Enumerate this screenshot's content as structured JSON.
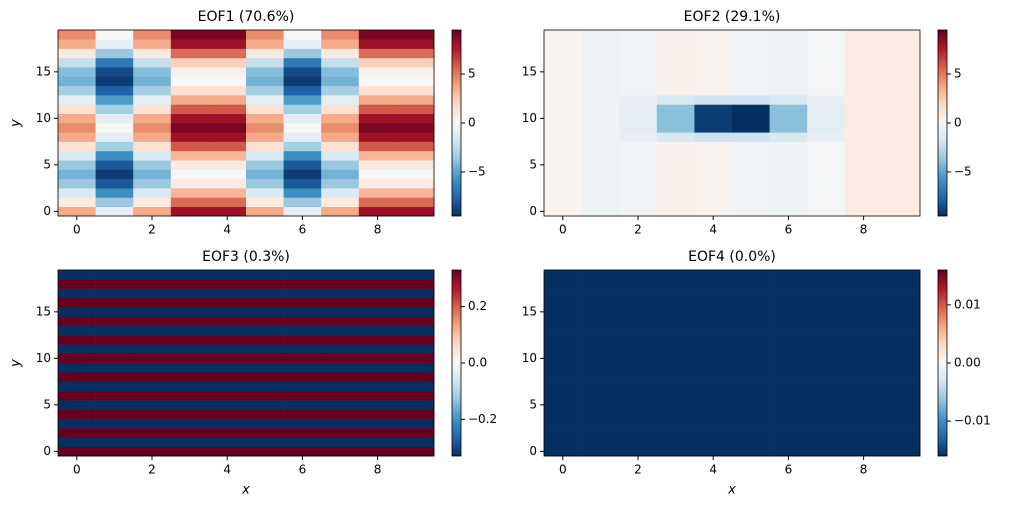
{
  "chart_data": [
    {
      "type": "heatmap",
      "title": "EOF1 (70.6%)",
      "ylabel": "y",
      "colormap": "RdBu_r",
      "xlim": [
        -0.5,
        9.5
      ],
      "xticks": [
        0,
        2,
        4,
        6,
        8
      ],
      "ylim": [
        -0.5,
        19.5
      ],
      "yticks": [
        0,
        5,
        10,
        15
      ],
      "clim": [
        -9.5,
        9.5
      ],
      "cticks": [
        {
          "value": -5,
          "label": "−5"
        },
        0,
        5
      ],
      "values": [
        [
          3.6,
          -0.9,
          3.6,
          8.1,
          8.1,
          3.6,
          -0.9,
          3.6,
          8.1,
          8.1
        ],
        [
          0.9,
          -3.6,
          0.9,
          5.4,
          5.4,
          0.9,
          -3.6,
          0.9,
          5.4,
          5.4
        ],
        [
          -1.4,
          -5.9,
          -1.4,
          3.2,
          3.2,
          -1.4,
          -5.9,
          -1.4,
          3.2,
          3.2
        ],
        [
          -3.6,
          -8.1,
          -3.6,
          0.9,
          0.9,
          -3.6,
          -8.1,
          -3.6,
          0.9,
          0.9
        ],
        [
          -4.5,
          -9,
          -4.5,
          0,
          0,
          -4.5,
          -9,
          -4.5,
          0,
          0
        ],
        [
          -3.6,
          -8.1,
          -3.6,
          0.9,
          0.9,
          -3.6,
          -8.1,
          -3.6,
          0.9,
          0.9
        ],
        [
          -1.4,
          -5.9,
          -1.4,
          3.2,
          3.2,
          -1.4,
          -5.9,
          -1.4,
          3.2,
          3.2
        ],
        [
          1.4,
          -3.2,
          1.4,
          5.9,
          5.9,
          1.4,
          -3.2,
          1.4,
          5.9,
          5.9
        ],
        [
          3.6,
          -0.9,
          3.6,
          8.1,
          8.1,
          3.6,
          -0.9,
          3.6,
          8.1,
          8.1
        ],
        [
          4.5,
          0,
          4.5,
          9,
          9,
          4.5,
          0,
          4.5,
          9,
          9
        ],
        [
          3.6,
          -0.9,
          3.6,
          8.1,
          8.1,
          3.6,
          -0.9,
          3.6,
          8.1,
          8.1
        ],
        [
          1.4,
          -3.2,
          1.4,
          5.9,
          5.9,
          1.4,
          -3.2,
          1.4,
          5.9,
          5.9
        ],
        [
          -0.9,
          -5.4,
          -0.9,
          3.6,
          3.6,
          -0.9,
          -5.4,
          -0.9,
          3.6,
          3.6
        ],
        [
          -3.2,
          -7.7,
          -3.2,
          1.4,
          1.4,
          -3.2,
          -7.7,
          -3.2,
          1.4,
          1.4
        ],
        [
          -4.5,
          -9,
          -4.5,
          0,
          0,
          -4.5,
          -9,
          -4.5,
          0,
          0
        ],
        [
          -4.1,
          -8.6,
          -4.1,
          0.5,
          0.5,
          -4.1,
          -8.6,
          -4.1,
          0.5,
          0.5
        ],
        [
          -2.3,
          -6.8,
          -2.3,
          2.3,
          2.3,
          -2.3,
          -6.8,
          -2.3,
          2.3,
          2.3
        ],
        [
          0.9,
          -3.6,
          0.9,
          5.4,
          5.4,
          0.9,
          -3.6,
          0.9,
          5.4,
          5.4
        ],
        [
          3.6,
          -0.9,
          3.6,
          8.1,
          8.1,
          3.6,
          -0.9,
          3.6,
          8.1,
          8.1
        ],
        [
          4.5,
          0,
          4.5,
          9,
          9,
          4.5,
          0,
          4.5,
          9,
          9
        ]
      ]
    },
    {
      "type": "heatmap",
      "title": "EOF2 (29.1%)",
      "colormap": "RdBu_r",
      "xlim": [
        -0.5,
        9.5
      ],
      "xticks": [
        0,
        2,
        4,
        6,
        8
      ],
      "ylim": [
        -0.5,
        19.5
      ],
      "yticks": [
        0,
        5,
        10,
        15
      ],
      "clim": [
        -9.5,
        9.5
      ],
      "cticks": [
        {
          "value": -5,
          "label": "−5"
        },
        0,
        5
      ],
      "values": [
        [
          0.3,
          -0.5,
          -0.3,
          0.5,
          0.3,
          -0.3,
          -0.5,
          -0.2,
          0.8,
          0.8
        ],
        [
          0.3,
          -0.5,
          -0.3,
          0.5,
          0.3,
          -0.3,
          -0.5,
          -0.2,
          0.8,
          0.8
        ],
        [
          0.3,
          -0.5,
          -0.3,
          0.5,
          0.3,
          -0.3,
          -0.5,
          -0.2,
          0.8,
          0.8
        ],
        [
          0.3,
          -0.5,
          -0.3,
          0.5,
          0.3,
          -0.3,
          -0.5,
          -0.2,
          0.8,
          0.8
        ],
        [
          0.3,
          -0.5,
          -0.3,
          0.5,
          0.3,
          -0.3,
          -0.5,
          -0.2,
          0.8,
          0.8
        ],
        [
          0.3,
          -0.5,
          -0.3,
          0.5,
          0.3,
          -0.3,
          -0.5,
          -0.2,
          0.8,
          0.8
        ],
        [
          0.3,
          -0.5,
          -0.3,
          0.5,
          0.3,
          -0.3,
          -0.5,
          -0.2,
          0.8,
          0.8
        ],
        [
          0.3,
          -0.5,
          -0.3,
          0.5,
          0.3,
          -0.3,
          -0.5,
          -0.2,
          0.8,
          0.8
        ],
        [
          0.3,
          -0.5,
          -0.8,
          -1.5,
          -2,
          -2,
          -1.5,
          -0.8,
          0.8,
          0.8
        ],
        [
          0.3,
          -0.5,
          -1,
          -4,
          -9,
          -9.5,
          -4,
          -1,
          0.8,
          0.8
        ],
        [
          0.3,
          -0.5,
          -1,
          -4,
          -9,
          -9.5,
          -4,
          -1,
          0.8,
          0.8
        ],
        [
          0.3,
          -0.5,
          -1,
          -4,
          -9,
          -9.5,
          -4,
          -1,
          0.8,
          0.8
        ],
        [
          0.3,
          -0.5,
          -0.8,
          -1.5,
          -2,
          -2,
          -1.5,
          -0.8,
          0.8,
          0.8
        ],
        [
          0.3,
          -0.5,
          -0.3,
          0.5,
          0.3,
          -0.3,
          -0.5,
          -0.2,
          0.8,
          0.8
        ],
        [
          0.3,
          -0.5,
          -0.3,
          0.5,
          0.3,
          -0.3,
          -0.5,
          -0.2,
          0.8,
          0.8
        ],
        [
          0.3,
          -0.5,
          -0.3,
          0.5,
          0.3,
          -0.3,
          -0.5,
          -0.2,
          0.8,
          0.8
        ],
        [
          0.3,
          -0.5,
          -0.3,
          0.5,
          0.3,
          -0.3,
          -0.5,
          -0.2,
          0.8,
          0.8
        ],
        [
          0.3,
          -0.5,
          -0.3,
          0.5,
          0.3,
          -0.3,
          -0.5,
          -0.2,
          0.8,
          0.8
        ],
        [
          0.3,
          -0.5,
          -0.3,
          0.5,
          0.3,
          -0.3,
          -0.5,
          -0.2,
          0.8,
          0.8
        ],
        [
          0.3,
          -0.5,
          -0.3,
          0.5,
          0.3,
          -0.3,
          -0.5,
          -0.2,
          0.8,
          0.8
        ]
      ]
    },
    {
      "type": "heatmap",
      "title": "EOF3 (0.3%)",
      "xlabel": "x",
      "ylabel": "y",
      "colormap": "RdBu_r",
      "xlim": [
        -0.5,
        9.5
      ],
      "xticks": [
        0,
        2,
        4,
        6,
        8
      ],
      "ylim": [
        -0.5,
        19.5
      ],
      "yticks": [
        0,
        5,
        10,
        15
      ],
      "clim": [
        -0.33,
        0.33
      ],
      "cticks": [
        {
          "value": -0.2,
          "label": "−0.2"
        },
        {
          "value": 0,
          "label": "0.0"
        },
        0.2
      ],
      "values": [
        [
          0.33,
          0.33,
          0.33,
          0.33,
          0.33,
          0.33,
          0.33,
          0.33,
          0.33,
          0.33
        ],
        [
          -0.33,
          -0.33,
          -0.33,
          -0.33,
          -0.33,
          -0.33,
          -0.33,
          -0.33,
          -0.33,
          -0.33
        ],
        [
          0.33,
          0.33,
          0.33,
          0.33,
          0.33,
          0.33,
          0.33,
          0.33,
          0.33,
          0.33
        ],
        [
          -0.33,
          -0.33,
          -0.33,
          -0.33,
          -0.33,
          -0.33,
          -0.33,
          -0.33,
          -0.33,
          -0.33
        ],
        [
          0.33,
          0.33,
          0.33,
          0.33,
          0.33,
          0.33,
          0.33,
          0.33,
          0.33,
          0.33
        ],
        [
          -0.33,
          -0.33,
          -0.33,
          -0.33,
          -0.33,
          -0.33,
          -0.33,
          -0.33,
          -0.33,
          -0.33
        ],
        [
          0.33,
          0.33,
          0.33,
          0.33,
          0.33,
          0.33,
          0.33,
          0.33,
          0.33,
          0.33
        ],
        [
          -0.33,
          -0.33,
          -0.33,
          -0.33,
          -0.33,
          -0.33,
          -0.33,
          -0.33,
          -0.33,
          -0.33
        ],
        [
          0.33,
          0.33,
          0.33,
          0.33,
          0.33,
          0.33,
          0.33,
          0.33,
          0.33,
          0.33
        ],
        [
          -0.33,
          -0.33,
          -0.33,
          -0.33,
          -0.33,
          -0.33,
          -0.33,
          -0.33,
          -0.33,
          -0.33
        ],
        [
          0.33,
          0.33,
          0.33,
          0.33,
          0.33,
          0.33,
          0.33,
          0.33,
          0.33,
          0.33
        ],
        [
          -0.33,
          -0.33,
          -0.33,
          -0.33,
          -0.33,
          -0.33,
          -0.33,
          -0.33,
          -0.33,
          -0.33
        ],
        [
          0.33,
          0.33,
          0.33,
          0.33,
          0.33,
          0.33,
          0.33,
          0.33,
          0.33,
          0.33
        ],
        [
          -0.33,
          -0.33,
          -0.33,
          -0.33,
          -0.33,
          -0.33,
          -0.33,
          -0.33,
          -0.33,
          -0.33
        ],
        [
          0.33,
          0.33,
          0.33,
          0.33,
          0.33,
          0.33,
          0.33,
          0.33,
          0.33,
          0.33
        ],
        [
          -0.33,
          -0.33,
          -0.33,
          -0.33,
          -0.33,
          -0.33,
          -0.33,
          -0.33,
          -0.33,
          -0.33
        ],
        [
          0.33,
          0.33,
          0.33,
          0.33,
          0.33,
          0.33,
          0.33,
          0.33,
          0.33,
          0.33
        ],
        [
          -0.33,
          -0.33,
          -0.33,
          -0.33,
          -0.33,
          -0.33,
          -0.33,
          -0.33,
          -0.33,
          -0.33
        ],
        [
          0.33,
          0.33,
          0.33,
          0.33,
          0.33,
          0.33,
          0.33,
          0.33,
          0.33,
          0.33
        ],
        [
          -0.33,
          -0.33,
          -0.33,
          -0.33,
          -0.33,
          -0.33,
          -0.33,
          -0.33,
          -0.33,
          -0.33
        ]
      ]
    },
    {
      "type": "heatmap",
      "title": "EOF4 (0.0%)",
      "xlabel": "x",
      "colormap": "RdBu_r",
      "xlim": [
        -0.5,
        9.5
      ],
      "xticks": [
        0,
        2,
        4,
        6,
        8
      ],
      "ylim": [
        -0.5,
        19.5
      ],
      "yticks": [
        0,
        5,
        10,
        15
      ],
      "clim": [
        -0.016,
        0.016
      ],
      "cticks": [
        {
          "value": -0.01,
          "label": "−0.01"
        },
        {
          "value": 0,
          "label": "0.00"
        },
        0.01
      ],
      "values": [
        [
          -0.016,
          -0.016,
          -0.016,
          -0.016,
          -0.016,
          -0.016,
          -0.016,
          -0.016,
          -0.016,
          -0.016
        ],
        [
          -0.016,
          -0.016,
          -0.016,
          -0.016,
          -0.016,
          -0.016,
          -0.016,
          -0.016,
          -0.016,
          -0.016
        ],
        [
          -0.016,
          -0.016,
          -0.016,
          -0.016,
          -0.016,
          -0.016,
          -0.016,
          -0.016,
          -0.016,
          -0.016
        ],
        [
          -0.016,
          -0.016,
          -0.016,
          -0.016,
          -0.016,
          -0.016,
          -0.016,
          -0.016,
          -0.016,
          -0.016
        ],
        [
          -0.016,
          -0.016,
          -0.016,
          -0.016,
          -0.016,
          -0.016,
          -0.016,
          -0.016,
          -0.016,
          -0.016
        ],
        [
          -0.016,
          -0.016,
          -0.016,
          -0.016,
          -0.016,
          -0.016,
          -0.016,
          -0.016,
          -0.016,
          -0.016
        ],
        [
          -0.016,
          -0.016,
          -0.016,
          -0.016,
          -0.016,
          -0.016,
          -0.016,
          -0.016,
          -0.016,
          -0.016
        ],
        [
          -0.016,
          -0.016,
          -0.016,
          -0.016,
          -0.016,
          -0.016,
          -0.016,
          -0.016,
          -0.016,
          -0.016
        ],
        [
          -0.016,
          -0.016,
          -0.016,
          -0.016,
          -0.016,
          -0.016,
          -0.016,
          -0.016,
          -0.016,
          -0.016
        ],
        [
          -0.016,
          -0.016,
          -0.016,
          -0.016,
          -0.016,
          -0.016,
          -0.016,
          -0.016,
          -0.016,
          -0.016
        ],
        [
          -0.016,
          -0.016,
          -0.016,
          -0.016,
          -0.016,
          -0.016,
          -0.016,
          -0.016,
          -0.016,
          -0.016
        ],
        [
          -0.016,
          -0.016,
          -0.016,
          -0.016,
          -0.016,
          -0.016,
          -0.016,
          -0.016,
          -0.016,
          -0.016
        ],
        [
          -0.016,
          -0.016,
          -0.016,
          -0.016,
          -0.016,
          -0.016,
          -0.016,
          -0.016,
          -0.016,
          -0.016
        ],
        [
          -0.016,
          -0.016,
          -0.016,
          -0.016,
          -0.016,
          -0.016,
          -0.016,
          -0.016,
          -0.016,
          -0.016
        ],
        [
          -0.016,
          -0.016,
          -0.016,
          -0.016,
          -0.016,
          -0.016,
          -0.016,
          -0.016,
          -0.016,
          -0.016
        ],
        [
          -0.016,
          -0.016,
          -0.016,
          -0.016,
          -0.016,
          -0.016,
          -0.016,
          -0.016,
          -0.016,
          -0.016
        ],
        [
          -0.016,
          -0.016,
          -0.016,
          -0.016,
          -0.016,
          -0.016,
          -0.016,
          -0.016,
          -0.016,
          -0.016
        ],
        [
          -0.016,
          -0.016,
          -0.016,
          -0.016,
          -0.016,
          -0.016,
          -0.016,
          -0.016,
          -0.016,
          -0.016
        ],
        [
          -0.016,
          -0.016,
          -0.016,
          -0.016,
          -0.016,
          -0.016,
          -0.016,
          -0.016,
          -0.016,
          -0.016
        ],
        [
          -0.016,
          -0.016,
          -0.016,
          -0.016,
          -0.016,
          -0.016,
          -0.016,
          -0.016,
          -0.016,
          -0.016
        ]
      ]
    }
  ]
}
